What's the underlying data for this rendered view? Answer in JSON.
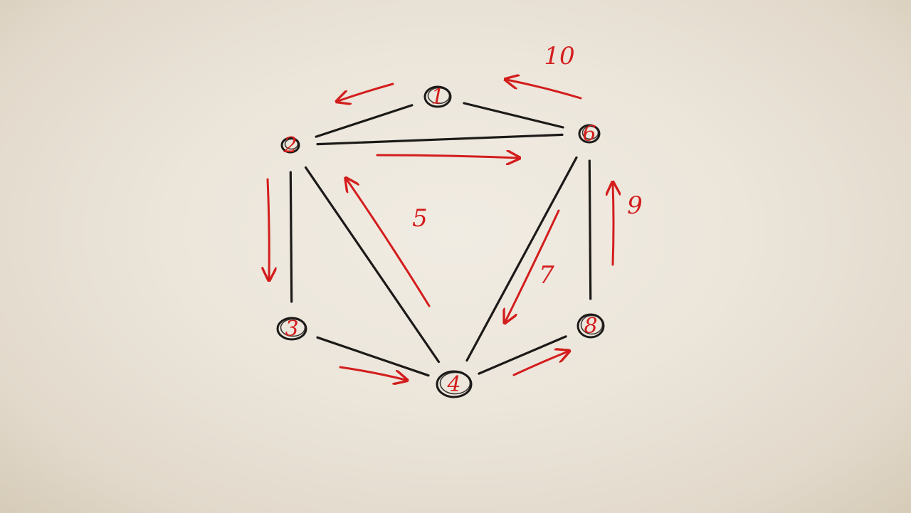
{
  "colors": {
    "paper": "#ece6dc",
    "ink": "#1c1a18",
    "pen": "#d31d1d"
  },
  "nodes": [
    {
      "id": "1",
      "label": "1"
    },
    {
      "id": "2",
      "label": "2"
    },
    {
      "id": "3",
      "label": "3"
    },
    {
      "id": "4",
      "label": "4"
    },
    {
      "id": "6",
      "label": "6"
    },
    {
      "id": "8",
      "label": "8"
    }
  ],
  "edges": [
    {
      "from": "2",
      "to": "1"
    },
    {
      "from": "1",
      "to": "6"
    },
    {
      "from": "2",
      "to": "6"
    },
    {
      "from": "2",
      "to": "3"
    },
    {
      "from": "2",
      "to": "4"
    },
    {
      "from": "3",
      "to": "4"
    },
    {
      "from": "4",
      "to": "6"
    },
    {
      "from": "4",
      "to": "8"
    },
    {
      "from": "6",
      "to": "8"
    }
  ],
  "traversal": [
    {
      "from": "1",
      "to": "2",
      "label": ""
    },
    {
      "from": "2",
      "to": "3",
      "label": ""
    },
    {
      "from": "3",
      "to": "4",
      "label": ""
    },
    {
      "from": "4",
      "to": "2",
      "label": "5"
    },
    {
      "from": "2",
      "to": "6",
      "label": ""
    },
    {
      "from": "6",
      "to": "4",
      "label": "7"
    },
    {
      "from": "4",
      "to": "8",
      "label": ""
    },
    {
      "from": "8",
      "to": "6",
      "label": "9"
    },
    {
      "from": "6",
      "to": "1",
      "label": "10"
    }
  ]
}
